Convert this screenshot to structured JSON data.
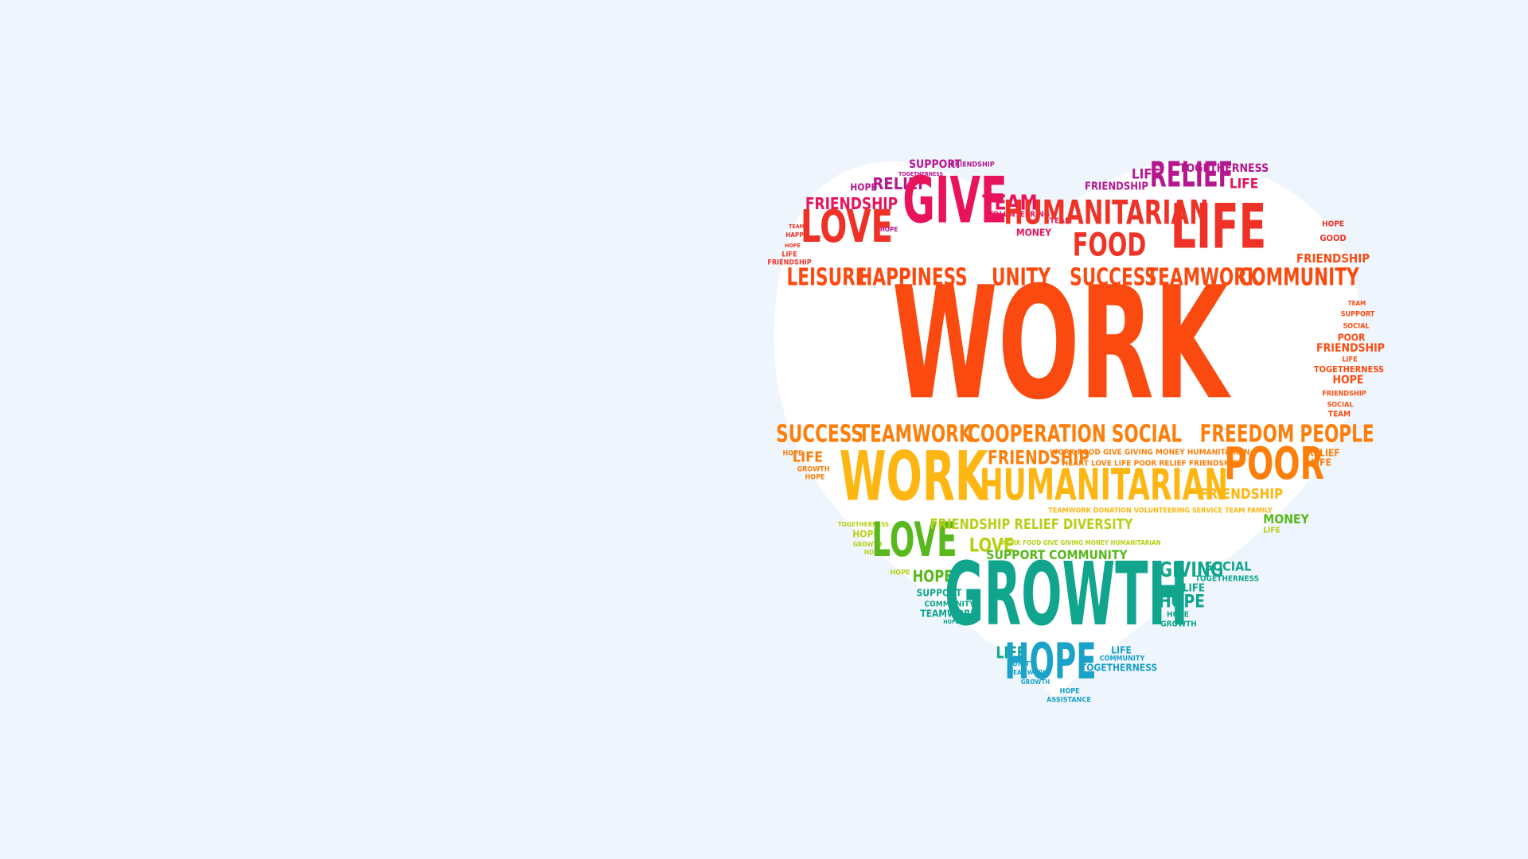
{
  "scene": {
    "background_color": "#eef5fc",
    "heart_fill": "#ffffff",
    "heart_shape": "heart"
  },
  "palette": {
    "magenta": "#b5178f",
    "pink": "#e8135a",
    "red": "#ef3227",
    "orange_red": "#fb4a10",
    "orange": "#fd7e0a",
    "amber": "#fdb612",
    "yellow_green": "#b8cf17",
    "green": "#58b81c",
    "teal": "#10a58c",
    "cyan": "#1aa2c9"
  },
  "words": [
    {
      "text": "SUPPORT",
      "color": "magenta"
    },
    {
      "text": "FRIENDSHIP",
      "color": "magenta"
    },
    {
      "text": "TOGETHERNESS",
      "color": "magenta"
    },
    {
      "text": "HOPE",
      "color": "magenta"
    },
    {
      "text": "RELIEF",
      "color": "magenta"
    },
    {
      "text": "GIVE",
      "color": "pink"
    },
    {
      "text": "FRIENDSHIP",
      "color": "pink"
    },
    {
      "text": "LOVE",
      "color": "red"
    },
    {
      "text": "TEAM",
      "color": "red"
    },
    {
      "text": "HAPPY",
      "color": "red"
    },
    {
      "text": "HOPE",
      "color": "red"
    },
    {
      "text": "LIFE",
      "color": "red"
    },
    {
      "text": "FRIENDSHIP",
      "color": "red"
    },
    {
      "text": "HOPE",
      "color": "magenta"
    },
    {
      "text": "LIFE",
      "color": "magenta"
    },
    {
      "text": "RELIEF",
      "color": "magenta"
    },
    {
      "text": "TOGETHERNESS",
      "color": "magenta"
    },
    {
      "text": "FRIENDSHIP",
      "color": "magenta"
    },
    {
      "text": "LIFE",
      "color": "pink"
    },
    {
      "text": "TEAM",
      "color": "pink"
    },
    {
      "text": "VOLUNTEERING",
      "color": "pink"
    },
    {
      "text": "TEAM",
      "color": "pink"
    },
    {
      "text": "MONEY",
      "color": "pink"
    },
    {
      "text": "HUMANITARIAN",
      "color": "red"
    },
    {
      "text": "FOOD",
      "color": "red"
    },
    {
      "text": "LIFE",
      "color": "red"
    },
    {
      "text": "HOPE",
      "color": "red"
    },
    {
      "text": "GOOD",
      "color": "red"
    },
    {
      "text": "FRIENDSHIP",
      "color": "orange_red"
    },
    {
      "text": "LEISURE",
      "color": "orange_red"
    },
    {
      "text": "HAPPINESS",
      "color": "orange_red"
    },
    {
      "text": "UNITY",
      "color": "orange_red"
    },
    {
      "text": "SUCCESS",
      "color": "orange_red"
    },
    {
      "text": "TEAMWORK",
      "color": "orange_red"
    },
    {
      "text": "COMMUNITY",
      "color": "orange_red"
    },
    {
      "text": "WORK",
      "color": "orange_red"
    },
    {
      "text": "TEAM",
      "color": "orange_red"
    },
    {
      "text": "SUPPORT",
      "color": "orange_red"
    },
    {
      "text": "SOCIAL",
      "color": "orange_red"
    },
    {
      "text": "POOR",
      "color": "orange_red"
    },
    {
      "text": "FRIENDSHIP",
      "color": "orange_red"
    },
    {
      "text": "LIFE",
      "color": "orange_red"
    },
    {
      "text": "TOGETHERNESS",
      "color": "orange_red"
    },
    {
      "text": "HOPE",
      "color": "orange_red"
    },
    {
      "text": "FRIENDSHIP",
      "color": "orange_red"
    },
    {
      "text": "SOCIAL",
      "color": "orange_red"
    },
    {
      "text": "TEAM",
      "color": "orange_red"
    },
    {
      "text": "SUCCESS",
      "color": "orange"
    },
    {
      "text": "TEAMWORK",
      "color": "orange"
    },
    {
      "text": "COOPERATION",
      "color": "orange"
    },
    {
      "text": "SOCIAL",
      "color": "orange"
    },
    {
      "text": "FREEDOM",
      "color": "orange"
    },
    {
      "text": "PEOPLE",
      "color": "orange"
    },
    {
      "text": "HOPE",
      "color": "orange"
    },
    {
      "text": "LIFE",
      "color": "orange"
    },
    {
      "text": "GROWTH",
      "color": "orange"
    },
    {
      "text": "HOPE",
      "color": "orange"
    },
    {
      "text": "WORK",
      "color": "amber"
    },
    {
      "text": "FRIENDSHIP",
      "color": "orange"
    },
    {
      "text": "WORK FOOD GIVE GIVING MONEY HUMANITARIAN",
      "color": "orange"
    },
    {
      "text": "HEART LOVE LIFE POOR RELIEF FRIENDSHIP",
      "color": "orange"
    },
    {
      "text": "POOR",
      "color": "orange"
    },
    {
      "text": "RELIEF",
      "color": "orange"
    },
    {
      "text": "LIFE",
      "color": "orange"
    },
    {
      "text": "HUMANITARIAN",
      "color": "amber"
    },
    {
      "text": "FRIENDSHIP",
      "color": "amber"
    },
    {
      "text": "TEAMWORK DONATION VOLUNTEERING SERVICE TEAM FAMILY",
      "color": "amber"
    },
    {
      "text": "TOGETHERNESS",
      "color": "yellow_green"
    },
    {
      "text": "HOPE",
      "color": "yellow_green"
    },
    {
      "text": "GROWTH",
      "color": "yellow_green"
    },
    {
      "text": "HOPE",
      "color": "yellow_green"
    },
    {
      "text": "LOVE",
      "color": "green"
    },
    {
      "text": "FRIENDSHIP RELIEF DIVERSITY",
      "color": "yellow_green"
    },
    {
      "text": "LOVE",
      "color": "yellow_green"
    },
    {
      "text": "WORK FOOD GIVE GIVING MONEY HUMANITARIAN",
      "color": "yellow_green"
    },
    {
      "text": "SUPPORT COMMUNITY",
      "color": "green"
    },
    {
      "text": "MONEY",
      "color": "green"
    },
    {
      "text": "LIFE",
      "color": "yellow_green"
    },
    {
      "text": "HOPE",
      "color": "yellow_green"
    },
    {
      "text": "HOPE",
      "color": "green"
    },
    {
      "text": "SUPPORT",
      "color": "teal"
    },
    {
      "text": "COMMUNITY",
      "color": "teal"
    },
    {
      "text": "TEAMWORK",
      "color": "teal"
    },
    {
      "text": "HOPE",
      "color": "teal"
    },
    {
      "text": "GROWTH",
      "color": "teal"
    },
    {
      "text": "GIVING",
      "color": "teal"
    },
    {
      "text": "SOCIAL",
      "color": "teal"
    },
    {
      "text": "LIFE",
      "color": "teal"
    },
    {
      "text": "HOPE",
      "color": "teal"
    },
    {
      "text": "TOGETHERNESS",
      "color": "teal"
    },
    {
      "text": "HOPE",
      "color": "teal"
    },
    {
      "text": "GROWTH",
      "color": "teal"
    },
    {
      "text": "LIFE",
      "color": "teal"
    },
    {
      "text": "UNITY",
      "color": "cyan"
    },
    {
      "text": "TEAMWORK",
      "color": "cyan"
    },
    {
      "text": "GROWTH",
      "color": "cyan"
    },
    {
      "text": "HOPE",
      "color": "cyan"
    },
    {
      "text": "LIFE",
      "color": "cyan"
    },
    {
      "text": "COMMUNITY",
      "color": "cyan"
    },
    {
      "text": "TOGETHERNESS",
      "color": "cyan"
    },
    {
      "text": "HOPE",
      "color": "cyan"
    },
    {
      "text": "ASSISTANCE",
      "color": "cyan"
    },
    {
      "text": "HOPE",
      "color": "cyan"
    }
  ]
}
